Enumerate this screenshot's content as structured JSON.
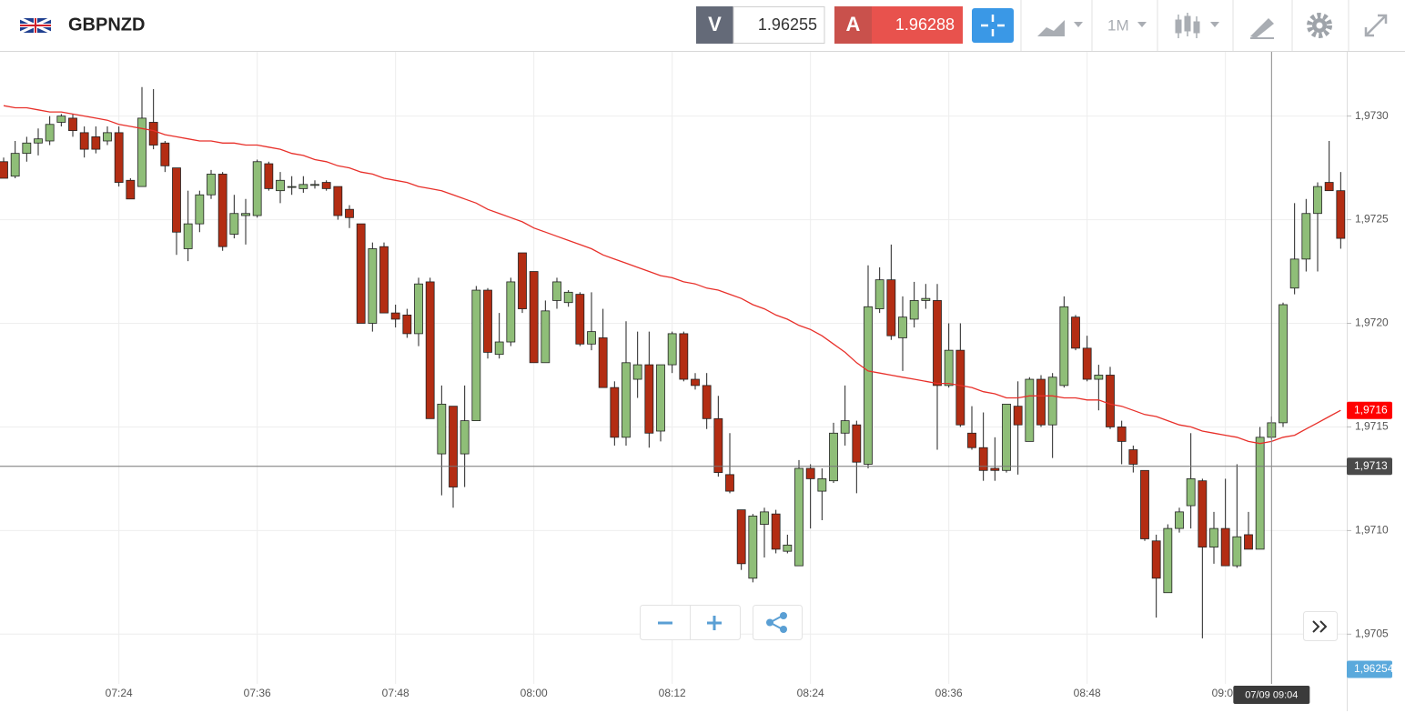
{
  "header": {
    "symbol": "GBPNZD",
    "sell_label": "V",
    "sell_price": 1.96255,
    "buy_label": "A",
    "buy_price": 1.96288,
    "timeframe": "1M"
  },
  "chart_data": {
    "type": "candlestick",
    "categories": [
      null,
      null,
      null,
      null,
      null,
      null,
      null,
      null,
      null,
      null,
      "07:24",
      null,
      null,
      null,
      null,
      null,
      null,
      null,
      null,
      null,
      null,
      null,
      "07:36",
      null,
      null,
      null,
      null,
      null,
      null,
      null,
      null,
      null,
      null,
      null,
      "07:48",
      null,
      null,
      null,
      null,
      null,
      null,
      null,
      null,
      null,
      null,
      null,
      "08:00",
      null,
      null,
      null,
      null,
      null,
      null,
      null,
      null,
      null,
      null,
      null,
      "08:12",
      null,
      null,
      null,
      null,
      null,
      null,
      null,
      null,
      null,
      null,
      null,
      "08:24",
      null,
      null,
      null,
      null,
      null,
      null,
      null,
      null,
      null,
      null,
      null,
      "08:36",
      null,
      null,
      null,
      null,
      null,
      null,
      null,
      null,
      null,
      null,
      null,
      "08:48",
      null,
      null,
      null,
      null,
      null,
      null,
      null,
      null,
      null,
      null,
      null,
      "09:00",
      null,
      null,
      null,
      null,
      null,
      null,
      null,
      null,
      null,
      null
    ],
    "open": [
      1.97278,
      1.97271,
      1.97282,
      1.97287,
      1.97288,
      1.97297,
      1.97299,
      1.97292,
      1.9729,
      1.97288,
      1.97292,
      1.97269,
      1.97266,
      1.97297,
      1.97287,
      1.97275,
      1.97236,
      1.97248,
      1.97262,
      1.97272,
      1.97243,
      1.97252,
      1.97252,
      1.97277,
      1.97264,
      1.97266,
      1.97265,
      1.97267,
      1.97268,
      1.97266,
      1.97255,
      1.97248,
      1.972,
      1.97237,
      1.97205,
      1.97204,
      1.97195,
      1.9722,
      1.97137,
      1.9716,
      1.97137,
      1.97153,
      1.97216,
      1.97185,
      1.97191,
      1.97234,
      1.97225,
      1.97181,
      1.97211,
      1.9721,
      1.97214,
      1.9719,
      1.97193,
      1.97169,
      1.97145,
      1.97173,
      1.9718,
      1.97148,
      1.9718,
      1.97195,
      1.97173,
      1.9717,
      1.97154,
      1.97127,
      1.9711,
      1.97077,
      1.97103,
      1.97108,
      1.9709,
      1.97083,
      1.9713,
      1.97119,
      1.97124,
      1.97147,
      1.97151,
      1.97132,
      1.97207,
      1.97221,
      1.97193,
      1.97202,
      1.97211,
      1.97211,
      1.9717,
      1.97187,
      1.97147,
      1.9714,
      1.9713,
      1.97129,
      1.9716,
      1.97143,
      1.97173,
      1.97151,
      1.9717,
      1.97203,
      1.97188,
      1.97173,
      1.97175,
      1.9715,
      1.97139,
      1.97129,
      1.97095,
      1.9707,
      1.97101,
      1.97112,
      1.97124,
      1.97092,
      1.97101,
      1.97083,
      1.97098,
      1.97091,
      1.97145,
      1.97152,
      1.97217,
      1.97231,
      1.97253,
      1.97268,
      1.97264
    ],
    "high": [
      1.9728,
      1.97288,
      1.9729,
      1.97294,
      1.973,
      1.97301,
      1.97301,
      1.97295,
      1.97295,
      1.97295,
      1.97295,
      1.9727,
      1.97314,
      1.97313,
      1.97288,
      1.97275,
      1.97264,
      1.97264,
      1.97274,
      1.97273,
      1.97262,
      1.9726,
      1.97279,
      1.97278,
      1.97273,
      1.97271,
      1.97271,
      1.97269,
      1.97269,
      1.97266,
      1.97257,
      1.97248,
      1.97239,
      1.97239,
      1.97209,
      1.97207,
      1.97222,
      1.97222,
      1.9717,
      1.9716,
      1.9717,
      1.97218,
      1.97217,
      1.97205,
      1.97222,
      1.97234,
      1.97225,
      1.97211,
      1.97222,
      1.97216,
      1.97215,
      1.97215,
      1.97207,
      1.97172,
      1.97201,
      1.97196,
      1.97196,
      1.9718,
      1.97196,
      1.97196,
      1.97176,
      1.97176,
      1.97165,
      1.97147,
      1.9711,
      1.97108,
      1.97111,
      1.9711,
      1.97098,
      1.97134,
      1.97132,
      1.9713,
      1.97152,
      1.9717,
      1.97153,
      1.97228,
      1.97227,
      1.97238,
      1.97213,
      1.9722,
      1.97219,
      1.97219,
      1.972,
      1.972,
      1.9716,
      1.97157,
      1.97145,
      1.97161,
      1.97172,
      1.97174,
      1.97175,
      1.97176,
      1.97213,
      1.97204,
      1.97194,
      1.9718,
      1.97179,
      1.97153,
      1.97141,
      1.97129,
      1.97098,
      1.97103,
      1.97111,
      1.97147,
      1.97125,
      1.97109,
      1.97125,
      1.97132,
      1.97109,
      1.9715,
      1.97155,
      1.9721,
      1.97258,
      1.9726,
      1.97268,
      1.97288,
      1.97273
    ],
    "low": [
      1.9727,
      1.9727,
      1.97278,
      1.97281,
      1.97286,
      1.97295,
      1.9729,
      1.9728,
      1.97282,
      1.97286,
      1.97266,
      1.9726,
      1.97266,
      1.97284,
      1.97273,
      1.97233,
      1.9723,
      1.97244,
      1.9726,
      1.97235,
      1.97241,
      1.97238,
      1.97251,
      1.97264,
      1.97258,
      1.97262,
      1.97263,
      1.97265,
      1.97264,
      1.9725,
      1.97246,
      1.972,
      1.97196,
      1.97205,
      1.97198,
      1.97193,
      1.97189,
      1.97154,
      1.97117,
      1.97111,
      1.97121,
      1.97153,
      1.97183,
      1.97183,
      1.97189,
      1.97205,
      1.97181,
      1.97181,
      1.97207,
      1.97208,
      1.97189,
      1.97187,
      1.97169,
      1.97141,
      1.97141,
      1.97164,
      1.9714,
      1.97143,
      1.97176,
      1.97172,
      1.97168,
      1.97149,
      1.97126,
      1.97118,
      1.97081,
      1.97075,
      1.97087,
      1.97089,
      1.97089,
      1.97083,
      1.97101,
      1.97105,
      1.97123,
      1.97141,
      1.97118,
      1.9713,
      1.97205,
      1.97192,
      1.97177,
      1.97198,
      1.97207,
      1.97139,
      1.97169,
      1.9715,
      1.97139,
      1.97124,
      1.97124,
      1.97128,
      1.97127,
      1.97143,
      1.9715,
      1.97135,
      1.97169,
      1.97187,
      1.97172,
      1.97158,
      1.97149,
      1.97132,
      1.97128,
      1.97095,
      1.97058,
      1.9707,
      1.97099,
      1.97101,
      1.97048,
      1.97084,
      1.97083,
      1.97082,
      1.97091,
      1.97091,
      1.97144,
      1.9715,
      1.97214,
      1.97225,
      1.97225,
      1.97264,
      1.97236
    ],
    "close": [
      1.9727,
      1.97282,
      1.97287,
      1.97289,
      1.97296,
      1.973,
      1.97293,
      1.97284,
      1.97284,
      1.97292,
      1.97268,
      1.9726,
      1.97299,
      1.97286,
      1.97276,
      1.97244,
      1.97248,
      1.97262,
      1.97272,
      1.97237,
      1.97253,
      1.97253,
      1.97278,
      1.97265,
      1.97269,
      1.97266,
      1.97267,
      1.97267,
      1.97265,
      1.97252,
      1.97251,
      1.972,
      1.97236,
      1.97205,
      1.97202,
      1.97195,
      1.97219,
      1.97154,
      1.97161,
      1.97121,
      1.97153,
      1.97216,
      1.97186,
      1.97191,
      1.9722,
      1.97207,
      1.97181,
      1.97206,
      1.9722,
      1.97215,
      1.9719,
      1.97196,
      1.97169,
      1.97145,
      1.97181,
      1.9718,
      1.97147,
      1.9718,
      1.97195,
      1.97173,
      1.9717,
      1.97154,
      1.97128,
      1.97119,
      1.97084,
      1.97107,
      1.97109,
      1.97091,
      1.97093,
      1.9713,
      1.97125,
      1.97125,
      1.97147,
      1.97153,
      1.97133,
      1.97208,
      1.97221,
      1.97194,
      1.97203,
      1.97211,
      1.97212,
      1.9717,
      1.97187,
      1.97151,
      1.9714,
      1.97129,
      1.97129,
      1.97161,
      1.97151,
      1.97173,
      1.97151,
      1.97174,
      1.97208,
      1.97188,
      1.97173,
      1.97175,
      1.9715,
      1.97143,
      1.97132,
      1.97096,
      1.97077,
      1.97101,
      1.97109,
      1.97125,
      1.97092,
      1.97101,
      1.97083,
      1.97097,
      1.97091,
      1.97145,
      1.97152,
      1.97209,
      1.97231,
      1.97253,
      1.97266,
      1.97264,
      1.97241
    ],
    "up_color": "#8fbe78",
    "down_color": "#b32d13",
    "ma": {
      "color": "#e8302a",
      "last_label": "1,9716",
      "label_color": "#ff0000",
      "values": [
        1.97305,
        1.97304,
        1.97304,
        1.97303,
        1.97302,
        1.97302,
        1.97301,
        1.973,
        1.97299,
        1.97298,
        1.97296,
        1.97295,
        1.97294,
        1.97293,
        1.97291,
        1.9729,
        1.97289,
        1.97288,
        1.97288,
        1.97287,
        1.97287,
        1.97286,
        1.97286,
        1.97285,
        1.97284,
        1.97282,
        1.97281,
        1.97279,
        1.97278,
        1.97276,
        1.97275,
        1.97273,
        1.97272,
        1.9727,
        1.97269,
        1.97268,
        1.97266,
        1.97265,
        1.97264,
        1.97262,
        1.9726,
        1.97258,
        1.97255,
        1.97253,
        1.97251,
        1.97249,
        1.97246,
        1.97244,
        1.97242,
        1.9724,
        1.97238,
        1.97236,
        1.97233,
        1.97231,
        1.97229,
        1.97227,
        1.97225,
        1.97223,
        1.97222,
        1.9722,
        1.97219,
        1.97217,
        1.97216,
        1.97214,
        1.97212,
        1.97209,
        1.97207,
        1.97204,
        1.97202,
        1.97199,
        1.97197,
        1.97194,
        1.9719,
        1.97186,
        1.97181,
        1.97177,
        1.97176,
        1.97175,
        1.97174,
        1.97173,
        1.97172,
        1.97171,
        1.97171,
        1.9717,
        1.97169,
        1.97167,
        1.97166,
        1.97164,
        1.97164,
        1.97165,
        1.97165,
        1.97165,
        1.97164,
        1.97164,
        1.97163,
        1.97163,
        1.97161,
        1.9716,
        1.97158,
        1.97156,
        1.97155,
        1.97153,
        1.97151,
        1.9715,
        1.97148,
        1.97147,
        1.97146,
        1.97145,
        1.97143,
        1.97142,
        1.97143,
        1.97145,
        1.97146,
        1.97149,
        1.97152,
        1.97155,
        1.97158
      ]
    },
    "ylim": [
      1.97026,
      1.97331
    ],
    "yticks": [
      {
        "value": 1.9705,
        "label": "1,9705"
      },
      {
        "value": 1.971,
        "label": "1,9710"
      },
      {
        "value": 1.9715,
        "label": "1,9715"
      },
      {
        "value": 1.972,
        "label": "1,9720"
      },
      {
        "value": 1.9725,
        "label": "1,9725"
      },
      {
        "value": 1.973,
        "label": "1,9730"
      }
    ],
    "grid": true,
    "crosshair": {
      "y": 1.97131,
      "y_label": "1,9713",
      "x_label": "07/09 09:04"
    },
    "bid": {
      "value": 1.96254,
      "label": "1,96254",
      "color": "#5aa9dc"
    }
  }
}
